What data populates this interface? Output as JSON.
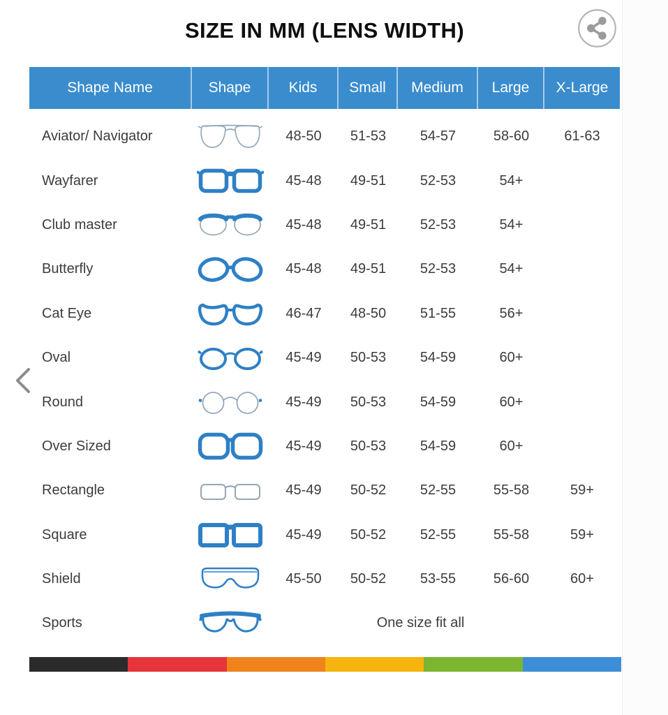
{
  "title": "SIZE IN MM (LENS WIDTH)",
  "share": {
    "icon": "share-icon"
  },
  "nav": {
    "prev_icon": "chevron-left-icon",
    "next_icon": "chevron-right-icon"
  },
  "colors": {
    "header_bg": "#3a8ccd",
    "frame_blue": "#2e80c5",
    "stripe": [
      "#2b2b2b",
      "#e6353b",
      "#ef841b",
      "#f6b40e",
      "#7cb530",
      "#3e8ed7"
    ]
  },
  "table": {
    "columns": [
      "Shape Name",
      "Shape",
      "Kids",
      "Small",
      "Medium",
      "Large",
      "X-Large"
    ],
    "rows": [
      {
        "name": "Aviator/ Navigator",
        "icon": "aviator-glasses-icon",
        "sizes": [
          "48-50",
          "51-53",
          "54-57",
          "58-60",
          "61-63"
        ]
      },
      {
        "name": "Wayfarer",
        "icon": "wayfarer-glasses-icon",
        "sizes": [
          "45-48",
          "49-51",
          "52-53",
          "54+",
          ""
        ]
      },
      {
        "name": "Club master",
        "icon": "clubmaster-glasses-icon",
        "sizes": [
          "45-48",
          "49-51",
          "52-53",
          "54+",
          ""
        ]
      },
      {
        "name": "Butterfly",
        "icon": "butterfly-glasses-icon",
        "sizes": [
          "45-48",
          "49-51",
          "52-53",
          "54+",
          ""
        ]
      },
      {
        "name": "Cat Eye",
        "icon": "cateye-glasses-icon",
        "sizes": [
          "46-47",
          "48-50",
          "51-55",
          "56+",
          ""
        ]
      },
      {
        "name": "Oval",
        "icon": "oval-glasses-icon",
        "sizes": [
          "45-49",
          "50-53",
          "54-59",
          "60+",
          ""
        ]
      },
      {
        "name": "Round",
        "icon": "round-glasses-icon",
        "sizes": [
          "45-49",
          "50-53",
          "54-59",
          "60+",
          ""
        ]
      },
      {
        "name": "Over Sized",
        "icon": "oversized-glasses-icon",
        "sizes": [
          "45-49",
          "50-53",
          "54-59",
          "60+",
          ""
        ]
      },
      {
        "name": "Rectangle",
        "icon": "rectangle-glasses-icon",
        "sizes": [
          "45-49",
          "50-52",
          "52-55",
          "55-58",
          "59+"
        ]
      },
      {
        "name": "Square",
        "icon": "square-glasses-icon",
        "sizes": [
          "45-49",
          "50-52",
          "52-55",
          "55-58",
          "59+"
        ]
      },
      {
        "name": "Shield",
        "icon": "shield-glasses-icon",
        "sizes": [
          "45-50",
          "50-52",
          "53-55",
          "56-60",
          "60+"
        ]
      },
      {
        "name": "Sports",
        "icon": "sports-glasses-icon",
        "note": "One size fit all"
      }
    ]
  }
}
